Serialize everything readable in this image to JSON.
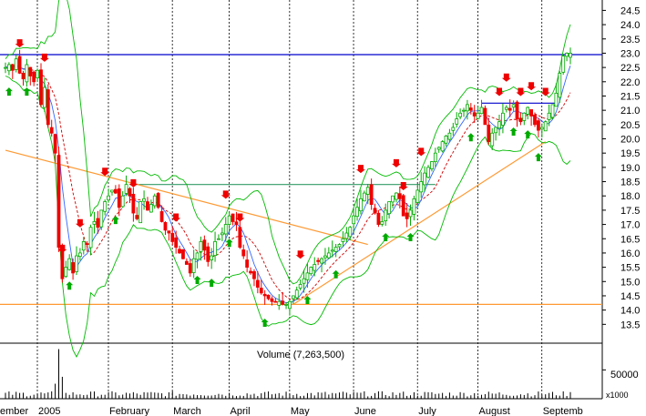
{
  "chart_data": {
    "type": "candlestick",
    "price_axis": {
      "ylim": [
        13.0,
        24.8
      ],
      "ticks": [
        "13.5",
        "14.0",
        "14.5",
        "15.0",
        "15.5",
        "16.0",
        "16.5",
        "17.0",
        "17.5",
        "18.0",
        "18.5",
        "19.0",
        "19.5",
        "20.0",
        "20.5",
        "21.0",
        "21.5",
        "22.0",
        "22.5",
        "23.0",
        "23.5",
        "24.0",
        "24.5"
      ],
      "side": "right"
    },
    "x_axis": {
      "labels": [
        "ember",
        "2005",
        "February",
        "March",
        "April",
        "May",
        "June",
        "July",
        "August",
        "Septemb"
      ],
      "label_positions_index": [
        0,
        10,
        30,
        48,
        64,
        81,
        99,
        117,
        134,
        152
      ],
      "n_bars": 160
    },
    "volume_panel": {
      "title": "Volume (7,263,500)",
      "tick": "50000",
      "unit": "x1000",
      "ylim": [
        0,
        9000
      ]
    },
    "horizontal_lines": [
      {
        "value": 22.95,
        "color": "#0000cc"
      },
      {
        "value": 14.2,
        "color": "#ff9933"
      },
      {
        "value": 18.4,
        "color": "#339966",
        "x_from_index": 35,
        "x_to_index": 121
      },
      {
        "value": 21.25,
        "color": "#0000cc",
        "x_from_index": 134,
        "x_to_index": 155
      }
    ],
    "trend_lines": [
      {
        "from": [
          0,
          19.6
        ],
        "to": [
          102,
          16.3
        ],
        "color": "#ff9933"
      },
      {
        "from": [
          81,
          14.2
        ],
        "to": [
          152,
          19.9
        ],
        "color": "#ff9933"
      }
    ],
    "closes": [
      22.5,
      22.6,
      22.4,
      22.8,
      22.3,
      22.1,
      22.6,
      22.2,
      22.0,
      22.4,
      21.2,
      21.8,
      20.5,
      20.2,
      19.5,
      16.2,
      15.1,
      15.5,
      15.8,
      15.3,
      15.9,
      16.0,
      16.4,
      16.3,
      16.9,
      17.1,
      16.9,
      17.5,
      17.8,
      18.0,
      18.2,
      18.1,
      17.6,
      18.0,
      18.4,
      18.0,
      17.4,
      17.2,
      17.8,
      17.9,
      17.5,
      17.7,
      18.0,
      17.6,
      17.1,
      16.8,
      16.7,
      16.4,
      16.2,
      16.0,
      15.8,
      15.6,
      15.3,
      15.8,
      16.0,
      16.4,
      16.1,
      15.7,
      15.9,
      16.4,
      16.5,
      16.7,
      17.0,
      17.3,
      17.1,
      17.0,
      16.2,
      15.9,
      15.5,
      15.3,
      15.1,
      14.8,
      14.6,
      14.5,
      14.4,
      14.3,
      14.3,
      14.3,
      14.2,
      14.2,
      14.3,
      14.5,
      14.7,
      14.9,
      15.1,
      15.3,
      15.5,
      15.6,
      15.7,
      15.8,
      15.9,
      16.0,
      16.1,
      16.2,
      16.3,
      16.5,
      16.7,
      16.9,
      17.3,
      17.6,
      17.9,
      18.1,
      18.3,
      17.7,
      17.4,
      17.0,
      17.1,
      17.5,
      17.8,
      18.0,
      18.1,
      17.9,
      17.3,
      17.2,
      17.5,
      17.9,
      18.2,
      18.5,
      18.8,
      19.0,
      19.2,
      19.5,
      19.7,
      19.9,
      20.1,
      20.2,
      20.4,
      20.7,
      20.9,
      21.0,
      21.2,
      21.0,
      20.8,
      20.9,
      21.1,
      20.5,
      19.9,
      20.2,
      20.4,
      20.6,
      20.9,
      21.1,
      21.0,
      21.2,
      20.7,
      20.6,
      20.9,
      21.1,
      20.8,
      20.5,
      20.3,
      20.4,
      20.6,
      20.9,
      21.2,
      21.6,
      22.3,
      22.9,
      23.0,
      23.0
    ],
    "sell_signal_indices": [
      4,
      11,
      16,
      21,
      28,
      36,
      48,
      62,
      66,
      83,
      100,
      110,
      112,
      117,
      139,
      141,
      145,
      148,
      152
    ],
    "buy_signal_indices": [
      1,
      6,
      18,
      31,
      54,
      58,
      63,
      73,
      85,
      93,
      107,
      114,
      131,
      143,
      147,
      150
    ]
  }
}
